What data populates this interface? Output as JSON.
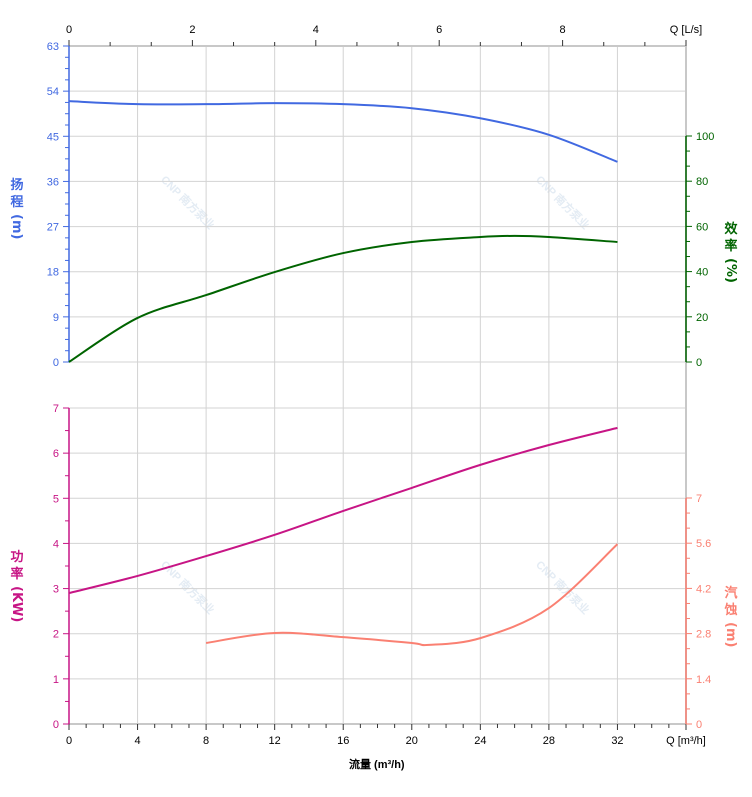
{
  "chart_data": {
    "type": "line",
    "xlabel": "流量 (m³/h)",
    "x_unit_label": "Q [m³/h]",
    "x2_unit_label": "Q [L/s]",
    "xlim": [
      0,
      36
    ],
    "x_ticks": [
      0,
      4,
      8,
      12,
      16,
      20,
      24,
      28,
      32
    ],
    "x2_ticks": [
      0,
      2,
      4,
      6,
      8
    ],
    "grid": true,
    "watermark": "CNP 南方泵业",
    "axes": {
      "head": {
        "label": [
          "扬",
          "程",
          "(m)"
        ],
        "ylim": [
          0,
          63
        ],
        "ticks": [
          0,
          9,
          18,
          27,
          36,
          45,
          54,
          63
        ],
        "color": "#4169E1"
      },
      "efficiency": {
        "label": [
          "效",
          "率",
          "(%)"
        ],
        "ylim": [
          0,
          100
        ],
        "ticks": [
          0,
          20,
          40,
          60,
          80,
          100
        ],
        "color": "#006400"
      },
      "power": {
        "label": [
          "功",
          "率",
          "(KW)"
        ],
        "ylim": [
          0,
          7
        ],
        "ticks": [
          0,
          1,
          2,
          3,
          4,
          5,
          6,
          7
        ],
        "color": "#C71585"
      },
      "npsh": {
        "label": [
          "汽",
          "蚀",
          "(m)"
        ],
        "ylim": [
          0,
          7
        ],
        "ticks": [
          "0",
          "1.4",
          "2.8",
          "4.2",
          "5.6",
          "7"
        ],
        "color": "#FA8072"
      }
    },
    "series": [
      {
        "axis": "head",
        "x": [
          0,
          4,
          8,
          12,
          16,
          20,
          24,
          28,
          32
        ],
        "y": [
          52.0,
          51.4,
          51.4,
          51.6,
          51.4,
          50.6,
          48.6,
          45.3,
          39.9
        ]
      },
      {
        "axis": "efficiency",
        "x": [
          0,
          4,
          8,
          12,
          16,
          20,
          24,
          26,
          28,
          32
        ],
        "y": [
          0,
          19.5,
          29.6,
          39.8,
          48.2,
          53.1,
          55.3,
          55.8,
          55.3,
          53.1
        ]
      },
      {
        "axis": "power",
        "x": [
          0,
          4,
          8,
          12,
          16,
          20,
          24,
          28,
          32
        ],
        "y": [
          2.9,
          3.28,
          3.72,
          4.19,
          4.72,
          5.23,
          5.74,
          6.18,
          6.56
        ]
      },
      {
        "axis": "npsh",
        "x": [
          8,
          12,
          16,
          20,
          21,
          24,
          28,
          32
        ],
        "y": [
          2.51,
          2.82,
          2.69,
          2.51,
          2.45,
          2.66,
          3.59,
          5.57
        ]
      }
    ]
  }
}
